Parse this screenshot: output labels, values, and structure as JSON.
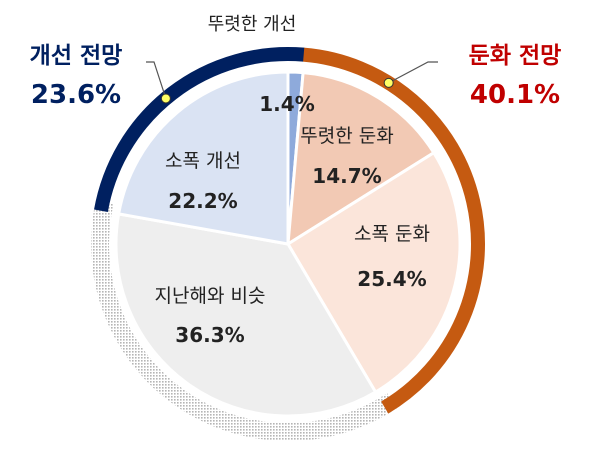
{
  "chart_data": {
    "type": "pie",
    "slices": [
      {
        "label": "1.4%",
        "name": "뚜렷한 개선",
        "value": 1.4,
        "color": "#8eaadb"
      },
      {
        "label": "뚜렷한 둔화",
        "value": 14.7,
        "color": "#f2c9b4"
      },
      {
        "label": "소폭 둔화",
        "value": 25.4,
        "color": "#fbe5da"
      },
      {
        "label": "지난해와 비슷",
        "value": 36.3,
        "color": "#eeeeee"
      },
      {
        "label": "소폭 개선",
        "value": 22.2,
        "color": "#dae3f3"
      }
    ],
    "groups": [
      {
        "title": "둔화 전망",
        "value": 40.1,
        "color": "#c55a11",
        "text_color": "#c00000"
      },
      {
        "title": "개선 전망",
        "value": 23.6,
        "color": "#002060",
        "text_color": "#002060"
      }
    ]
  }
}
